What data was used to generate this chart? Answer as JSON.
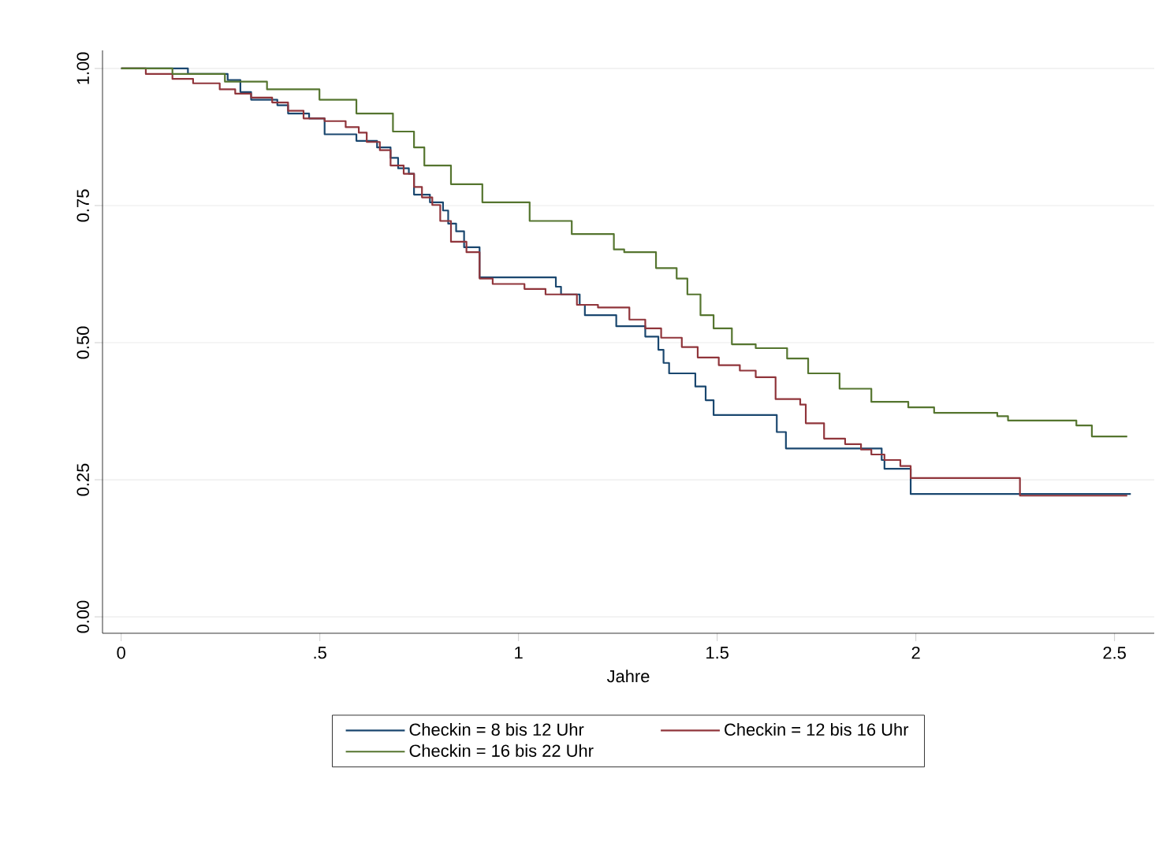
{
  "chart_data": {
    "type": "step",
    "xlabel": "Jahre",
    "xlim": [
      -0.047,
      2.6
    ],
    "ylim": [
      -0.03,
      1.033
    ],
    "xticks": [
      0,
      {
        "value": 0.5,
        "label": ".5"
      },
      1,
      1.5,
      2,
      2.5
    ],
    "yticks": [
      {
        "value": 0,
        "label": "0.00"
      },
      {
        "value": 0.25,
        "label": "0.25"
      },
      {
        "value": 0.5,
        "label": "0.50"
      },
      {
        "value": 0.75,
        "label": "0.75"
      },
      {
        "value": 1,
        "label": "1.00"
      }
    ],
    "grid": "y",
    "legend": "bottom",
    "line_style": "solid",
    "marker": "none",
    "series": [
      {
        "name": "Checkin = 8 bis 12 Uhr",
        "color": "#1a476f",
        "x": [
          0,
          0.168,
          0.268,
          0.3,
          0.327,
          0.393,
          0.42,
          0.473,
          0.512,
          0.592,
          0.644,
          0.678,
          0.697,
          0.724,
          0.737,
          0.777,
          0.81,
          0.823,
          0.843,
          0.863,
          0.902,
          1.094,
          1.107,
          1.154,
          1.167,
          1.246,
          1.319,
          1.352,
          1.365,
          1.379,
          1.445,
          1.471,
          1.491,
          1.65,
          1.673,
          1.914,
          1.921,
          1.987,
          2.541
        ],
        "values": [
          1.0,
          0.99,
          0.979,
          0.957,
          0.943,
          0.933,
          0.918,
          0.909,
          0.88,
          0.868,
          0.856,
          0.837,
          0.818,
          0.808,
          0.77,
          0.756,
          0.741,
          0.717,
          0.703,
          0.674,
          0.619,
          0.602,
          0.588,
          0.569,
          0.55,
          0.53,
          0.511,
          0.487,
          0.463,
          0.444,
          0.42,
          0.395,
          0.368,
          0.337,
          0.307,
          0.286,
          0.27,
          0.224,
          0.224
        ]
      },
      {
        "name": "Checkin = 12 bis 16 Uhr",
        "color": "#90353b",
        "x": [
          0,
          0.062,
          0.129,
          0.181,
          0.248,
          0.287,
          0.327,
          0.38,
          0.42,
          0.459,
          0.512,
          0.565,
          0.598,
          0.618,
          0.651,
          0.678,
          0.711,
          0.737,
          0.757,
          0.783,
          0.803,
          0.83,
          0.869,
          0.902,
          0.935,
          1.015,
          1.068,
          1.147,
          1.2,
          1.279,
          1.319,
          1.359,
          1.411,
          1.451,
          1.504,
          1.557,
          1.597,
          1.647,
          1.709,
          1.723,
          1.769,
          1.822,
          1.862,
          1.888,
          1.921,
          1.961,
          1.987,
          2.262,
          2.532
        ],
        "values": [
          1.0,
          0.99,
          0.981,
          0.973,
          0.962,
          0.954,
          0.947,
          0.938,
          0.923,
          0.909,
          0.904,
          0.893,
          0.883,
          0.866,
          0.851,
          0.823,
          0.808,
          0.784,
          0.765,
          0.751,
          0.722,
          0.684,
          0.665,
          0.617,
          0.607,
          0.598,
          0.588,
          0.569,
          0.564,
          0.542,
          0.526,
          0.509,
          0.492,
          0.473,
          0.459,
          0.449,
          0.437,
          0.397,
          0.387,
          0.353,
          0.325,
          0.315,
          0.305,
          0.296,
          0.286,
          0.275,
          0.253,
          0.221,
          0.221
        ]
      },
      {
        "name": "Checkin = 16 bis 22 Uhr",
        "color": "#55752f",
        "x": [
          0,
          0.129,
          0.261,
          0.367,
          0.499,
          0.592,
          0.684,
          0.737,
          0.763,
          0.83,
          0.909,
          1.028,
          1.134,
          1.24,
          1.266,
          1.346,
          1.398,
          1.425,
          1.458,
          1.491,
          1.537,
          1.597,
          1.676,
          1.729,
          1.808,
          1.888,
          1.981,
          2.046,
          2.205,
          2.232,
          2.364,
          2.404,
          2.443,
          2.532
        ],
        "values": [
          1.0,
          0.99,
          0.976,
          0.962,
          0.943,
          0.918,
          0.885,
          0.856,
          0.823,
          0.789,
          0.756,
          0.722,
          0.698,
          0.67,
          0.665,
          0.636,
          0.617,
          0.588,
          0.55,
          0.526,
          0.497,
          0.49,
          0.471,
          0.444,
          0.416,
          0.392,
          0.382,
          0.372,
          0.366,
          0.358,
          0.358,
          0.349,
          0.329,
          0.329
        ]
      }
    ]
  }
}
